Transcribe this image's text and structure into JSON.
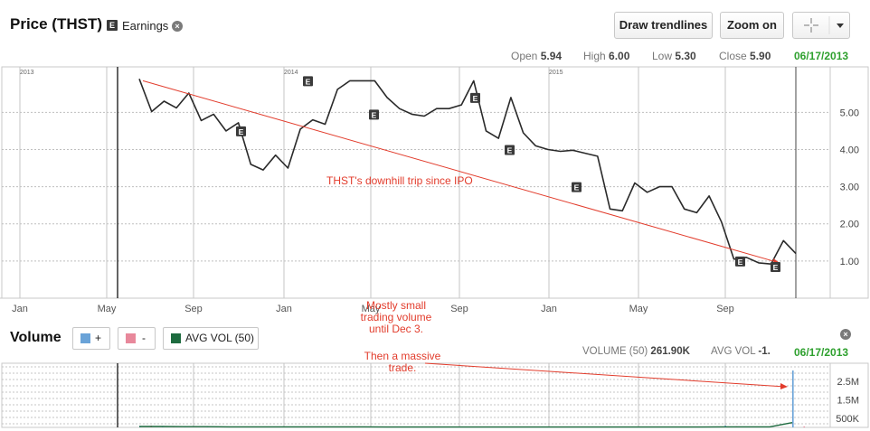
{
  "header": {
    "title": "Price (THST)",
    "earnings_badge": "E",
    "earnings_label": "Earnings",
    "close_glyph": "×",
    "draw_trendlines": "Draw trendlines",
    "zoom_on": "Zoom on",
    "crosshair_icon": "crosshair-icon",
    "dropdown_icon": "caret-down-icon"
  },
  "ohlc": {
    "open_label": "Open",
    "open": "5.94",
    "high_label": "High",
    "high": "6.00",
    "low_label": "Low",
    "low": "5.30",
    "close_label": "Close",
    "close": "5.90",
    "date": "06/17/2013"
  },
  "volume_header": {
    "title": "Volume",
    "up_label": "+",
    "down_label": "-",
    "avg_label": "AVG VOL (50)",
    "volume_label": "VOLUME (50)",
    "volume_value": "261.90K",
    "avgvol_label": "AVG VOL",
    "avgvol_value": "-1.",
    "date": "06/17/2013"
  },
  "colors": {
    "price_line": "#2a2a2a",
    "trend_line": "#e23c2c",
    "annotation": "#e23c2c",
    "up_volume": "#6aa3d8",
    "down_volume": "#e8889b",
    "avg_volume": "#1d6b3f",
    "date_green": "#2ea02e"
  },
  "chart_data": [
    {
      "type": "line",
      "series": [
        {
          "values": [
            5.9,
            5.02,
            5.3,
            5.12,
            5.52,
            4.78,
            4.95,
            4.5,
            4.72,
            3.6,
            3.45,
            3.85,
            3.5,
            4.55,
            4.8,
            4.68,
            5.62,
            5.85,
            5.85,
            5.85,
            5.4,
            5.1,
            4.95,
            4.9,
            5.1,
            5.1,
            5.2,
            5.85,
            4.5,
            4.3,
            5.4,
            4.45,
            4.1,
            4.0,
            3.95,
            3.98,
            3.9,
            3.82,
            2.4,
            2.35,
            3.1,
            2.85,
            3.0,
            3.0,
            2.4,
            2.3,
            2.75,
            2.05,
            1.05,
            1.1,
            0.95,
            0.92,
            1.55,
            1.2
          ]
        }
      ],
      "y_ticks": [
        "5.00",
        "4.00",
        "3.00",
        "2.00",
        "1.00"
      ],
      "x_ticks": [
        "Jan",
        "May",
        "Sep",
        "Jan",
        "May",
        "Sep",
        "Jan",
        "May",
        "Sep"
      ],
      "year_labels": [
        "2013",
        "2014",
        "2015"
      ],
      "ylim": [
        0,
        6.2
      ],
      "earnings_marker": "E",
      "earnings_values": [
        4.5,
        5.85,
        4.95,
        5.4,
        4.0,
        3.0,
        1.0,
        0.85
      ],
      "trendline": {
        "from": 5.85,
        "to": 0.95
      },
      "annotation": "THST's downhill trip since IPO",
      "grid": true
    },
    {
      "type": "bar",
      "series": [
        {
          "name": "+",
          "values": [
            0.08,
            0.05,
            0.05,
            0.04,
            0.04,
            0.04,
            0.03,
            0.03,
            0.03,
            0.03,
            0.03,
            0.03,
            0.03,
            0.02,
            0.02,
            0.02,
            0.02,
            0.02,
            0.03,
            0.02,
            0.02,
            0.02,
            0.03,
            0.02,
            0.02,
            0.02,
            0.1,
            0.03,
            0.02,
            3.1
          ]
        },
        {
          "name": "-",
          "values": [
            0.1,
            0.07,
            0.06,
            0.05,
            0.05,
            0.04,
            0.04,
            0.04,
            0.03,
            0.03,
            0.03,
            0.03,
            0.03,
            0.03,
            0.02,
            0.02,
            0.02,
            0.02,
            0.02,
            0.02,
            0.02,
            0.02,
            0.02,
            0.02,
            0.02,
            0.02,
            0.06,
            0.03,
            0.02,
            0.05
          ]
        },
        {
          "name": "AVG VOL (50)",
          "values": [
            0.05,
            0.05,
            0.04,
            0.04,
            0.03,
            0.03,
            0.03,
            0.03,
            0.03,
            0.03,
            0.03,
            0.02,
            0.02,
            0.02,
            0.02,
            0.02,
            0.02,
            0.02,
            0.02,
            0.02,
            0.02,
            0.02,
            0.02,
            0.02,
            0.02,
            0.02,
            0.03,
            0.03,
            0.03,
            0.26
          ]
        }
      ],
      "y_ticks": [
        "2.5M",
        "1.5M",
        "500K"
      ],
      "ylim": [
        0,
        3.3
      ],
      "annotations": [
        "Mostly small\ntrading volume\nuntil Dec 3.",
        "Then a massive\ntrade."
      ]
    }
  ]
}
